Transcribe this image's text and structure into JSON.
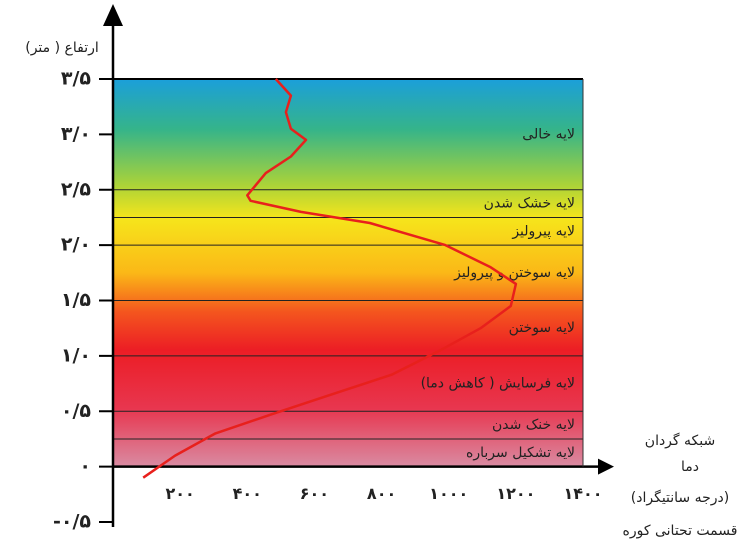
{
  "chart_data": {
    "type": "line",
    "y_label": "ارتفاع ( متر)",
    "x_label": "دما",
    "x_unit": "(درجه سانتیگراد)",
    "annotations": [
      "شبکه گردان",
      "قسمت تحتانی کوره"
    ],
    "x": [
      90,
      185,
      305,
      470,
      650,
      830,
      975,
      1095,
      1185,
      1200,
      1125,
      990,
      765,
      560,
      410,
      400,
      455,
      530,
      575,
      530,
      515,
      530,
      485
    ],
    "values": [
      -0.1,
      0.1,
      0.3,
      0.47,
      0.65,
      0.83,
      1.05,
      1.25,
      1.45,
      1.65,
      1.8,
      2.0,
      2.2,
      2.3,
      2.4,
      2.45,
      2.65,
      2.8,
      2.95,
      3.05,
      3.2,
      3.35,
      3.5
    ],
    "color": "#e8201c",
    "xlim": [
      0,
      1400
    ],
    "ylim": [
      -0.5,
      3.5
    ],
    "xticks": [
      {
        "value": 200,
        "label": "۲۰۰"
      },
      {
        "value": 400,
        "label": "۴۰۰"
      },
      {
        "value": 600,
        "label": "۶۰۰"
      },
      {
        "value": 800,
        "label": "۸۰۰"
      },
      {
        "value": 1000,
        "label": "۱۰۰۰"
      },
      {
        "value": 1200,
        "label": "۱۲۰۰"
      },
      {
        "value": 1400,
        "label": "۱۴۰۰"
      }
    ],
    "yticks": [
      {
        "value": 3.5,
        "label": "۳/۵"
      },
      {
        "value": 3.0,
        "label": "۳/۰"
      },
      {
        "value": 2.5,
        "label": "۲/۵"
      },
      {
        "value": 2.0,
        "label": "۲/۰"
      },
      {
        "value": 1.5,
        "label": "۱/۵"
      },
      {
        "value": 1.0,
        "label": "۱/۰"
      },
      {
        "value": 0.5,
        "label": "۰/۵"
      },
      {
        "value": 0,
        "label": "۰"
      },
      {
        "value": -0.5,
        "label": "-۰/۵"
      }
    ],
    "layers": [
      {
        "label": "لایه خالی",
        "ylow": 2.5,
        "yhigh": 3.5
      },
      {
        "label": "لایه خشک شدن",
        "ylow": 2.25,
        "yhigh": 2.5
      },
      {
        "label": "لایه پیرولیز",
        "ylow": 2.0,
        "yhigh": 2.25
      },
      {
        "label": "لایه سوختن و پیرولیز",
        "ylow": 1.5,
        "yhigh": 2.0
      },
      {
        "label": "لایه سوختن",
        "ylow": 1.0,
        "yhigh": 1.5
      },
      {
        "label": "لایه فرسایش ( کاهش دما)",
        "ylow": 0.5,
        "yhigh": 1.0
      },
      {
        "label": "لایه خنک شدن",
        "ylow": 0.25,
        "yhigh": 0.5
      },
      {
        "label": "لایه تشکیل سرباره",
        "ylow": 0,
        "yhigh": 0.25
      }
    ]
  }
}
